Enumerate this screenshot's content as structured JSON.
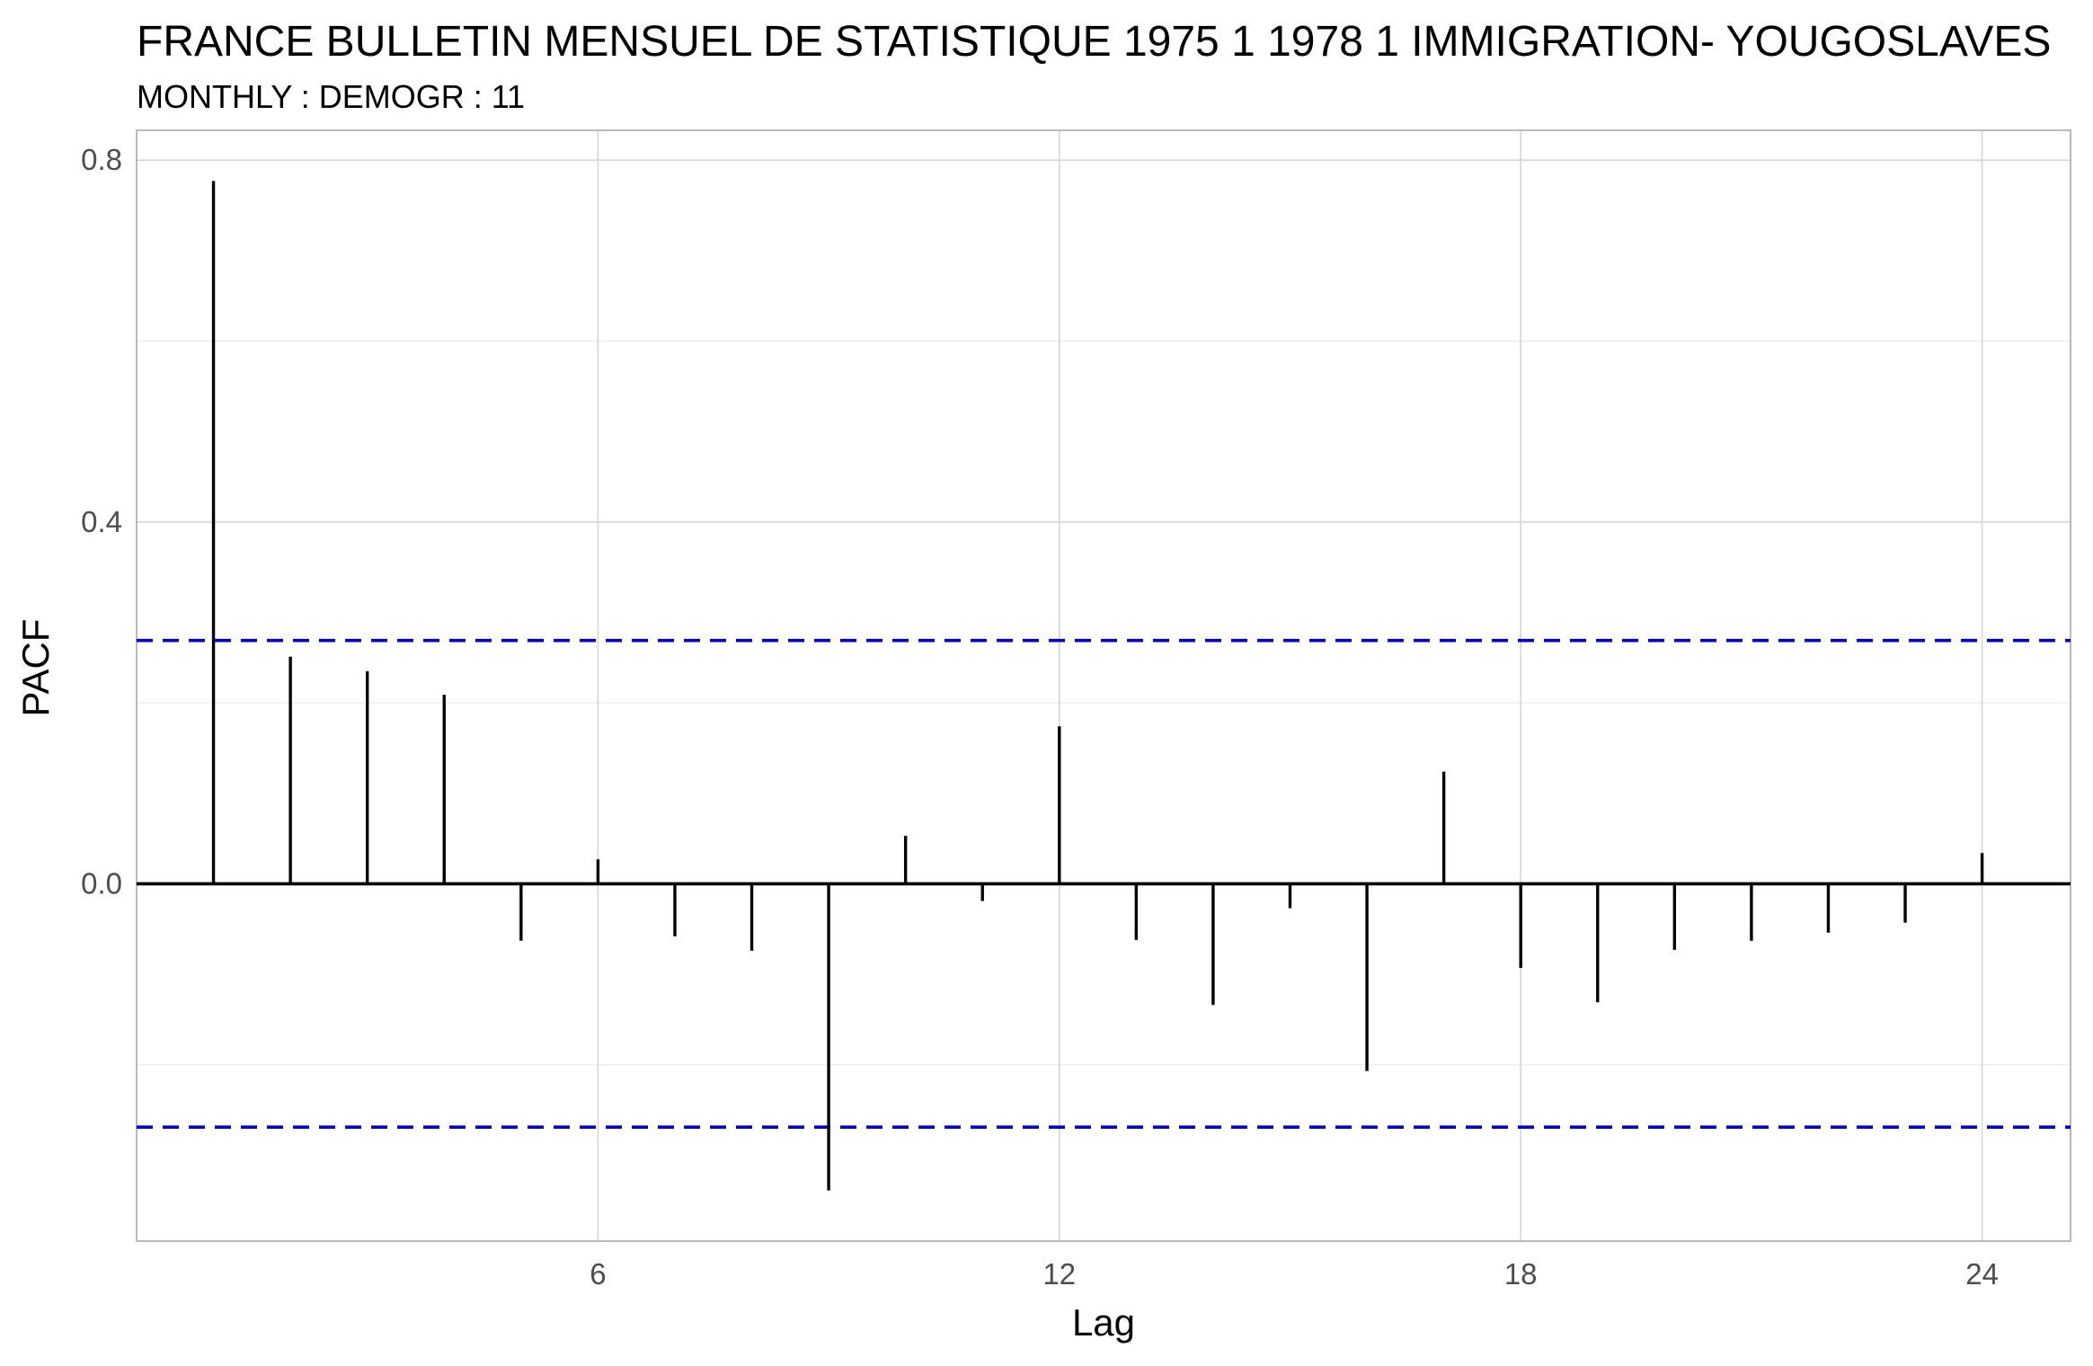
{
  "chart_data": {
    "type": "bar",
    "title": "FRANCE BULLETIN MENSUEL DE STATISTIQUE 1975 1 1978 1 IMMIGRATION- YOUGOSLAVES",
    "subtitle": "MONTHLY : DEMOGR : 11",
    "xlabel": "Lag",
    "ylabel": "PACF",
    "xlim": [
      0,
      25.15
    ],
    "ylim": [
      -0.395,
      0.833
    ],
    "x_ticks": [
      6,
      12,
      18,
      24
    ],
    "x_tick_labels": [
      "6",
      "12",
      "18",
      "24"
    ],
    "y_ticks": [
      0.0,
      0.4,
      0.8
    ],
    "y_tick_labels": [
      "0.0",
      "0.4",
      "0.8"
    ],
    "y_minor_gridlines": [
      -0.2,
      0.2,
      0.6
    ],
    "grid": true,
    "confidence_bounds": [
      0.269,
      -0.269
    ],
    "x": [
      1,
      2,
      3,
      4,
      5,
      6,
      7,
      8,
      9,
      10,
      11,
      12,
      13,
      14,
      15,
      16,
      17,
      18,
      19,
      20,
      21,
      22,
      23,
      24
    ],
    "values": [
      0.777,
      0.251,
      0.235,
      0.209,
      -0.063,
      0.027,
      -0.058,
      -0.074,
      -0.339,
      0.053,
      -0.019,
      0.174,
      -0.062,
      -0.134,
      -0.027,
      -0.207,
      0.124,
      -0.093,
      -0.131,
      -0.073,
      -0.063,
      -0.054,
      -0.043,
      0.034
    ],
    "colors": {
      "bars": "#000000",
      "bounds": "#0000CC",
      "grid_major": "#D9D9D9",
      "grid_minor": "#EBEBEB",
      "panel_border": "#B3B3B3",
      "tick_label": "#4D4D4D"
    }
  }
}
